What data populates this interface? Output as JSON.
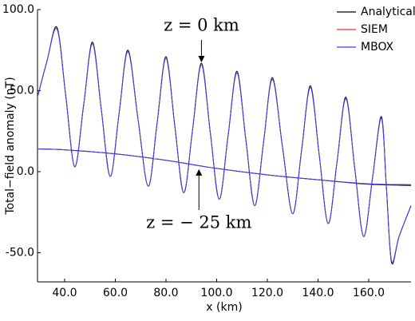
{
  "chart_data": {
    "type": "line",
    "xlabel": "x (km)",
    "ylabel": "Total−field anomaly (nT)",
    "xlim": [
      29.3,
      176.7
    ],
    "ylim": [
      -68,
      100
    ],
    "xticks": [
      {
        "value": 40,
        "label": "40.0"
      },
      {
        "value": 60,
        "label": "60.0"
      },
      {
        "value": 80,
        "label": "80.0"
      },
      {
        "value": 100,
        "label": "100.0"
      },
      {
        "value": 120,
        "label": "120.0"
      },
      {
        "value": 140,
        "label": "140.0"
      },
      {
        "value": 160,
        "label": "160.0"
      }
    ],
    "yticks": [
      {
        "value": -50,
        "label": "-50.0"
      },
      {
        "value": 0,
        "label": "0.0"
      },
      {
        "value": 50,
        "label": "50.0"
      },
      {
        "value": 100,
        "label": "100.0"
      }
    ],
    "legend": "upper right",
    "annotations": [
      {
        "text": "z = 0 km",
        "x": 94,
        "y": 66
      },
      {
        "text": "z = − 25 km",
        "x": 93,
        "y": 3
      }
    ],
    "series": [
      {
        "name": "Analytical",
        "color": "#000000",
        "x": [
          29.3,
          33,
          37,
          40.5,
          44,
          47.5,
          51,
          54.5,
          58,
          61.5,
          65,
          69,
          73,
          76.5,
          80,
          83.5,
          87,
          90.5,
          94,
          97.5,
          101,
          104.5,
          108,
          111.5,
          115,
          118.5,
          122,
          126,
          130,
          133.5,
          137,
          140.5,
          144,
          147.5,
          151,
          154.5,
          158,
          161.5,
          165,
          167,
          169,
          172,
          176.7,
          null,
          29.3,
          40,
          60,
          80,
          100,
          120,
          140,
          160,
          176.7
        ],
        "values": [
          46,
          68,
          89,
          46,
          3,
          41,
          80,
          38,
          -3,
          36,
          75,
          32,
          -9,
          30,
          71,
          28,
          -13,
          26,
          67,
          24,
          -17,
          22,
          62,
          20,
          -21,
          18,
          58,
          15,
          -26,
          13,
          53,
          10,
          -32,
          6,
          46,
          2,
          -40,
          -4,
          34,
          -10,
          -56,
          -40,
          -21,
          null,
          14,
          13.5,
          11,
          7,
          2,
          -2,
          -5,
          -7.8,
          -8.5
        ]
      },
      {
        "name": "SIEM",
        "color": "#e8352a",
        "x": [
          29.3,
          33,
          37,
          40.5,
          44,
          47.5,
          51,
          54.5,
          58,
          61.5,
          65,
          69,
          73,
          76.5,
          80,
          83.5,
          87,
          90.5,
          94,
          97.5,
          101,
          104.5,
          108,
          111.5,
          115,
          118.5,
          122,
          126,
          130,
          133.5,
          137,
          140.5,
          144,
          147.5,
          151,
          154.5,
          158,
          161.5,
          165,
          167,
          169,
          172,
          176.7,
          null,
          29.3,
          40,
          60,
          80,
          100,
          120,
          140,
          160,
          176.7
        ],
        "values": [
          46,
          68,
          88,
          46,
          3,
          41,
          79,
          38,
          -3,
          36,
          74,
          32,
          -9,
          30,
          70,
          28,
          -13,
          26,
          66,
          24,
          -17,
          22,
          61,
          20,
          -21,
          18,
          57,
          15,
          -26,
          13,
          52,
          10,
          -32,
          6,
          45,
          2,
          -40,
          -4,
          33,
          -10,
          -55,
          -40,
          -21,
          null,
          14,
          13.5,
          11,
          7,
          2,
          -2,
          -5,
          -7.5,
          -8
        ]
      },
      {
        "name": "MBOX",
        "color": "#3b3bff",
        "x": [
          29.3,
          33,
          37,
          40.5,
          44,
          47.5,
          51,
          54.5,
          58,
          61.5,
          65,
          69,
          73,
          76.5,
          80,
          83.5,
          87,
          90.5,
          94,
          97.5,
          101,
          104.5,
          108,
          111.5,
          115,
          118.5,
          122,
          126,
          130,
          133.5,
          137,
          140.5,
          144,
          147.5,
          151,
          154.5,
          158,
          161.5,
          165,
          167,
          169,
          172,
          176.7,
          null,
          29.3,
          40,
          60,
          80,
          100,
          120,
          140,
          160,
          176.7
        ],
        "values": [
          46,
          68,
          88,
          46,
          3,
          41,
          79,
          38,
          -3,
          36,
          74,
          32,
          -9,
          30,
          70,
          28,
          -13,
          26,
          66,
          24,
          -17,
          22,
          61,
          20,
          -21,
          18,
          57,
          15,
          -26,
          13,
          52,
          10,
          -32,
          6,
          45,
          2,
          -40,
          -4,
          33,
          -10,
          -55,
          -40,
          -21,
          null,
          14,
          13.5,
          11,
          7,
          2,
          -2,
          -5,
          -7.5,
          -8
        ]
      }
    ]
  }
}
